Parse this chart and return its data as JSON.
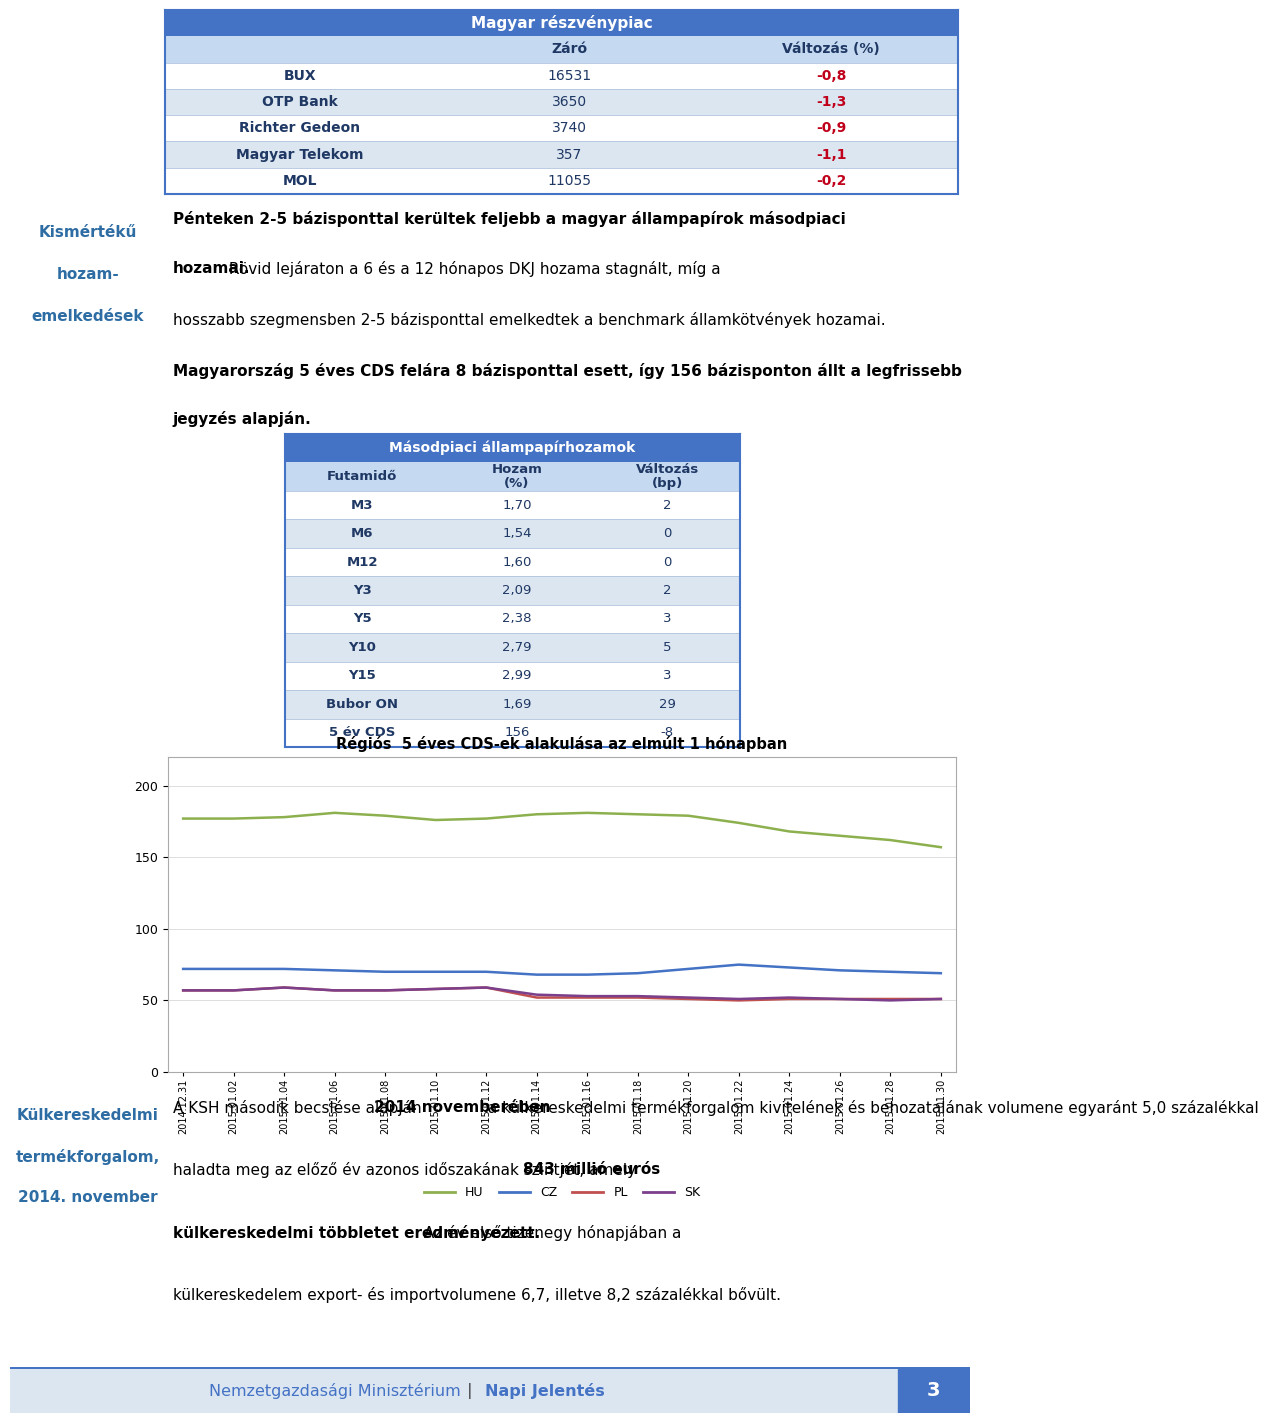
{
  "stock_table_title": "Magyar részvénypiac",
  "stock_headers": [
    "",
    "Záró",
    "Változás (%)"
  ],
  "stock_rows": [
    [
      "BUX",
      "16531",
      "-0,8"
    ],
    [
      "OTP Bank",
      "3650",
      "-1,3"
    ],
    [
      "Richter Gedeon",
      "3740",
      "-0,9"
    ],
    [
      "Magyar Telekom",
      "357",
      "-1,1"
    ],
    [
      "MOL",
      "11055",
      "-0,2"
    ]
  ],
  "left_label1": [
    "Kismértékű",
    "hozam-",
    "emelkedések"
  ],
  "body_lines": [
    {
      "text": "Pénteken 2-5 bázisponttal kerültek feljebb a magyar állampapírok másodpiaci",
      "bold": true
    },
    {
      "text": "hozamai.",
      "bold": true
    },
    {
      "text": " Rövid lejáraton a 6 és a 12 hónapos DKJ hozama stagnált, míg a hosszabb szegmensben 2-5 bázisponttal emelkedtek a benchmark",
      "bold": false
    },
    {
      "text": "államkötvények hozamai.",
      "bold": false
    },
    {
      "text": " Magyarország 5 éves CDS felára 8 bázisponttal esett, így 156 bázisponton állt a legfrissebb jegyzés alapján.",
      "bold": true
    }
  ],
  "bond_table_title": "Másodpiaci állampapírhozamok",
  "bond_headers": [
    "Futamidő",
    "Hozam\n(%)",
    "Változás\n(bp)"
  ],
  "bond_rows": [
    [
      "M3",
      "1,70",
      "2"
    ],
    [
      "M6",
      "1,54",
      "0"
    ],
    [
      "M12",
      "1,60",
      "0"
    ],
    [
      "Y3",
      "2,09",
      "2"
    ],
    [
      "Y5",
      "2,38",
      "3"
    ],
    [
      "Y10",
      "2,79",
      "5"
    ],
    [
      "Y15",
      "2,99",
      "3"
    ],
    [
      "Bubor ON",
      "1,69",
      "29"
    ],
    [
      "5 év CDS",
      "156",
      "-8"
    ]
  ],
  "chart_title": "Régiós  5 éves CDS-ek alakulása az elmúlt 1 hónapban",
  "chart_dates": [
    "2014.12.31",
    "2015.01.02",
    "2015.01.04",
    "2015.01.06",
    "2015.01.08",
    "2015.01.10",
    "2015.01.12",
    "2015.01.14",
    "2015.01.16",
    "2015.01.18",
    "2015.01.20",
    "2015.01.22",
    "2015.01.24",
    "2015.01.26",
    "2015.01.28",
    "2015.01.30"
  ],
  "HU": [
    177,
    177,
    178,
    181,
    179,
    176,
    177,
    180,
    181,
    180,
    179,
    174,
    168,
    165,
    162,
    157
  ],
  "CZ": [
    72,
    72,
    72,
    71,
    70,
    70,
    70,
    68,
    68,
    69,
    72,
    75,
    73,
    71,
    70,
    69
  ],
  "PL": [
    57,
    57,
    59,
    57,
    57,
    58,
    59,
    52,
    52,
    52,
    51,
    50,
    51,
    51,
    51,
    51
  ],
  "SK": [
    57,
    57,
    59,
    57,
    57,
    58,
    59,
    54,
    53,
    53,
    52,
    51,
    52,
    51,
    50,
    51
  ],
  "line_colors": {
    "HU": "#8db04e",
    "CZ": "#4472c4",
    "PL": "#c0504d",
    "SK": "#7b3f8c"
  },
  "left_label2": [
    "Külkereskedelmi",
    "termékforgalom,",
    "2014. november"
  ],
  "footer_lines": [
    "A KSH második becslése alapján {b}2014 novemberében{/b} a külkereskedelmi termékforgalom kivitelének és behozatalának volumene egyaránt 5,0 százalékkal",
    "haladta meg az előző év azonos időszakának szintjét, amely {b}843 millió eurós{/b}",
    "{b}külkereskedelmi többletet eredményezett.{/b} Az év első tizenegy hónapjában a",
    "külkereskedelem export- és importvolumene 6,7, illetve 8,2 százalékkal bővült."
  ],
  "header_bg": "#4472c4",
  "subheader_bg": "#c5d9f1",
  "row_odd_bg": "#ffffff",
  "row_even_bg": "#dce6f1",
  "table_text": "#1f3864",
  "red_text": "#c0001a",
  "blue_label": "#2e6da4",
  "bottom_bar_bg": "#dce6f1",
  "bottom_bar_line": "#4472c4"
}
